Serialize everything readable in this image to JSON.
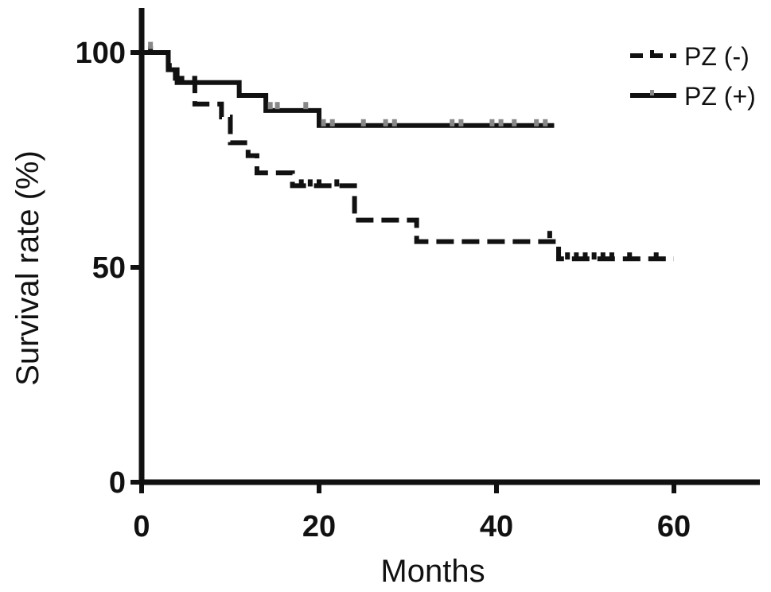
{
  "chart_data": {
    "type": "line",
    "xlabel": "Months",
    "ylabel": "Survival rate (%)",
    "xlim": [
      0,
      70
    ],
    "ylim": [
      0,
      110
    ],
    "xticks": [
      0,
      20,
      40,
      60
    ],
    "yticks": [
      0,
      50,
      100
    ],
    "xtick_labels": [
      "0",
      "20",
      "40",
      "60"
    ],
    "ytick_labels": [
      "0",
      "50",
      "100"
    ],
    "grid": false,
    "legend_position": "top-right",
    "series": [
      {
        "name": "PZ (-)",
        "line_style": "dashed",
        "color": "#111111",
        "censor_color": "#111111",
        "steps": [
          [
            0,
            100
          ],
          [
            3,
            97
          ],
          [
            3.8,
            94
          ],
          [
            6,
            88
          ],
          [
            9,
            85
          ],
          [
            10,
            79
          ],
          [
            12,
            76
          ],
          [
            13,
            72
          ],
          [
            17,
            69
          ],
          [
            24,
            61
          ],
          [
            31,
            56
          ],
          [
            47,
            52
          ],
          [
            60,
            52
          ]
        ],
        "censored": [
          [
            1,
            100
          ],
          [
            18,
            69
          ],
          [
            19,
            69
          ],
          [
            20,
            69
          ],
          [
            22,
            69
          ],
          [
            46,
            57
          ],
          [
            48,
            52
          ],
          [
            49,
            52
          ],
          [
            50,
            52
          ],
          [
            51,
            52
          ],
          [
            52,
            52
          ],
          [
            53,
            52
          ],
          [
            55,
            52
          ],
          [
            58,
            52
          ]
        ]
      },
      {
        "name": "PZ (+)",
        "line_style": "solid",
        "color": "#111111",
        "censor_color": "#888888",
        "steps": [
          [
            0,
            100
          ],
          [
            3,
            96
          ],
          [
            4,
            93
          ],
          [
            11,
            90
          ],
          [
            14,
            86.5
          ],
          [
            20,
            83
          ],
          [
            46.5,
            83
          ]
        ],
        "censored": [
          [
            1,
            101
          ],
          [
            14.5,
            87
          ],
          [
            15.3,
            87
          ],
          [
            18.5,
            87
          ],
          [
            20.5,
            83
          ],
          [
            21.5,
            83
          ],
          [
            25,
            83
          ],
          [
            27.5,
            83
          ],
          [
            28.5,
            83
          ],
          [
            35,
            83
          ],
          [
            36,
            83
          ],
          [
            39.5,
            83
          ],
          [
            40.5,
            83
          ],
          [
            42,
            83
          ],
          [
            44.5,
            83
          ],
          [
            45.5,
            83
          ]
        ]
      }
    ]
  }
}
